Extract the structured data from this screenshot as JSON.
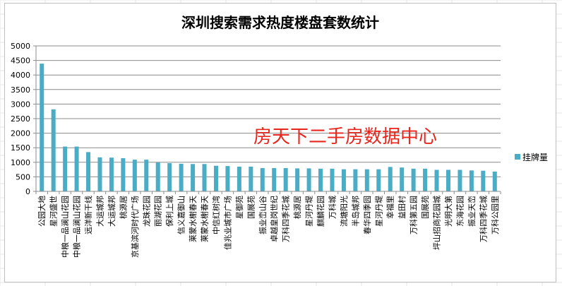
{
  "chart_data": {
    "type": "bar",
    "title": "深圳搜索需求热度楼盘套数统计",
    "categories": [
      "公园大地",
      "星河盛世",
      "中粮一品澜山花园",
      "中粮一品澜山花园",
      "远洋新干线",
      "大运城邦",
      "大运城邦",
      "桃源居",
      "京基滨河时代广场",
      "龙珠花园",
      "丽湖花园",
      "保利上城",
      "信义嘉御山",
      "莱蒙水榭春天",
      "莱蒙水榭春天",
      "中信红树湾",
      "佳兆业城市广场",
      "星御苑",
      "国展苑",
      "振业峦山谷",
      "卓越皇岗世纪",
      "万科四季花城",
      "桃源居",
      "星河丹堤",
      "麒麟花园",
      "万科城",
      "流塘阳光",
      "半岛城邦",
      "春华四季园",
      "星河丹堤",
      "幸福里",
      "益田村",
      "万科第五园",
      "国展苑",
      "坪山招商花园城",
      "光明大第",
      "东海花园",
      "振业天峦",
      "万科四季花城",
      "万科公园里"
    ],
    "series": [
      {
        "name": "挂牌量",
        "values": [
          4390,
          2820,
          1540,
          1540,
          1350,
          1170,
          1160,
          1140,
          1090,
          1090,
          990,
          970,
          950,
          940,
          940,
          880,
          870,
          850,
          850,
          800,
          800,
          800,
          790,
          790,
          780,
          780,
          760,
          760,
          760,
          760,
          840,
          820,
          780,
          780,
          740,
          740,
          740,
          720,
          710,
          680
        ]
      }
    ],
    "ylim": [
      0,
      5000
    ],
    "yticks": [
      "0",
      "500",
      "1000",
      "1500",
      "2000",
      "2500",
      "3000",
      "3500",
      "4000",
      "4500",
      "5000"
    ],
    "grid": true,
    "legend": "right",
    "bar_color": "#4bacc6",
    "watermark": "房天下二手房数据中心",
    "watermark_color": "#e8261e"
  }
}
